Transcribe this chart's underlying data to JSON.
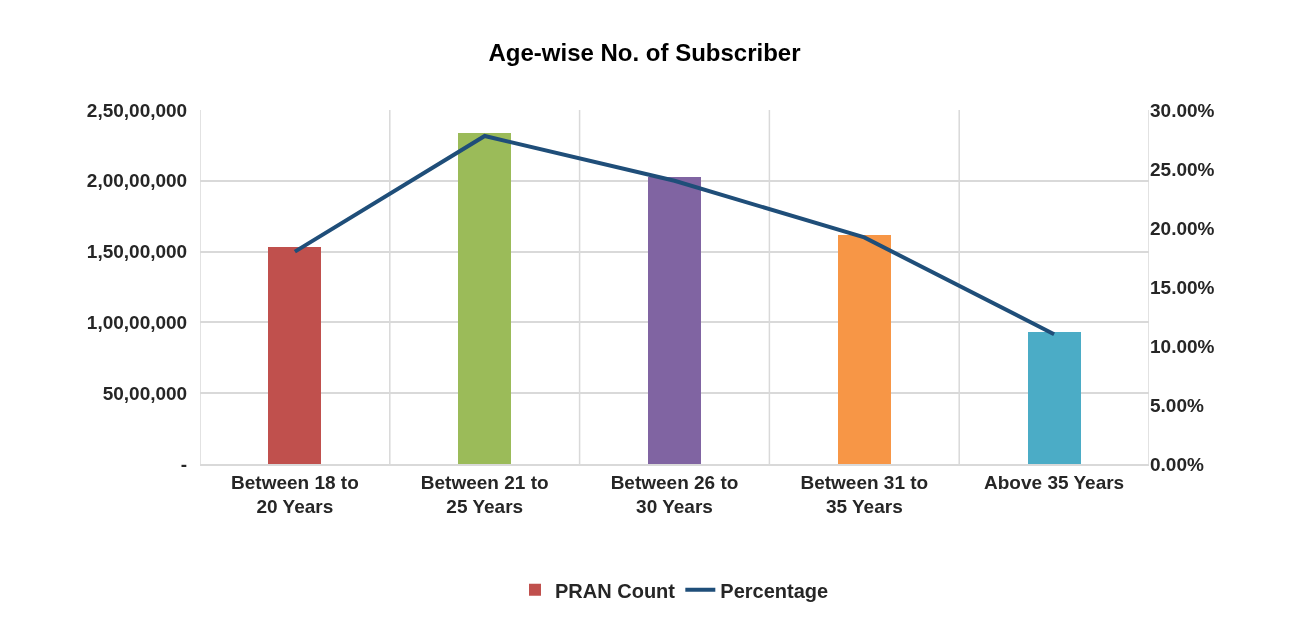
{
  "chart_data": {
    "type": "bar",
    "title": "Age-wise No. of Subscriber",
    "categories": [
      "Between 18 to 20 Years",
      "Between 21 to 25 Years",
      "Between 26 to 30 Years",
      "Between 31 to 35 Years",
      "Above 35 Years"
    ],
    "series": [
      {
        "name": "PRAN Count",
        "colors": [
          "#c0504d",
          "#9bbb59",
          "#8064a2",
          "#f79646",
          "#4bacc6"
        ],
        "values": [
          15300000,
          23400000,
          20300000,
          16200000,
          9300000
        ]
      },
      {
        "name": "Percentage",
        "type": "line",
        "axis": "y2",
        "color": "#1f4e79",
        "values": [
          18.0,
          27.8,
          24.0,
          19.2,
          11.0
        ]
      }
    ],
    "ylim": [
      0,
      25000000
    ],
    "yticks": [
      {
        "value": 0,
        "label": "-"
      },
      {
        "value": 5000000,
        "label": "50,00,000"
      },
      {
        "value": 10000000,
        "label": "1,00,00,000"
      },
      {
        "value": 15000000,
        "label": "1,50,00,000"
      },
      {
        "value": 20000000,
        "label": "2,00,00,000"
      },
      {
        "value": 25000000,
        "label": "2,50,00,000"
      }
    ],
    "y2lim": [
      0,
      30
    ],
    "y2ticks": [
      {
        "value": 0,
        "label": "0.00%"
      },
      {
        "value": 5,
        "label": "5.00%"
      },
      {
        "value": 10,
        "label": "10.00%"
      },
      {
        "value": 15,
        "label": "15.00%"
      },
      {
        "value": 20,
        "label": "20.00%"
      },
      {
        "value": 25,
        "label": "25.00%"
      },
      {
        "value": 30,
        "label": "30.00%"
      }
    ],
    "grid": true,
    "legend": "bottom",
    "marker": "none",
    "line_style": "solid"
  }
}
